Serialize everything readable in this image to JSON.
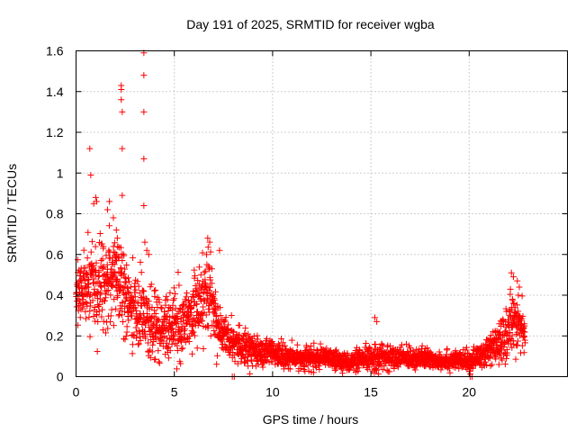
{
  "chart_data": {
    "type": "scatter",
    "title": "Day 191 of 2025, SRMTID for receiver wgba",
    "xlabel": "GPS time / hours",
    "ylabel": "SRMTID / TECUs",
    "xlim": [
      0,
      25
    ],
    "ylim": [
      0,
      1.6
    ],
    "x_ticks": [
      0,
      5,
      10,
      15,
      20
    ],
    "x_tick_labels": [
      "0",
      "5",
      "10",
      "15",
      "20"
    ],
    "y_ticks": [
      0,
      0.2,
      0.4,
      0.6,
      0.8,
      1,
      1.2,
      1.4,
      1.6
    ],
    "y_tick_labels": [
      "0",
      "0.2",
      "0.4",
      "0.6",
      "0.8",
      "1",
      "1.2",
      "1.4",
      "1.6"
    ],
    "grid": true,
    "marker": "+",
    "color": "#ff0000",
    "series": [
      {
        "name": "SRMTID",
        "profile": [
          [
            0.0,
            0.4,
            0.12
          ],
          [
            0.5,
            0.45,
            0.13
          ],
          [
            1.0,
            0.42,
            0.14
          ],
          [
            1.5,
            0.46,
            0.14
          ],
          [
            2.0,
            0.55,
            0.14
          ],
          [
            2.5,
            0.4,
            0.13
          ],
          [
            3.0,
            0.32,
            0.12
          ],
          [
            3.5,
            0.28,
            0.11
          ],
          [
            4.0,
            0.25,
            0.1
          ],
          [
            4.5,
            0.24,
            0.1
          ],
          [
            5.0,
            0.26,
            0.1
          ],
          [
            5.5,
            0.27,
            0.1
          ],
          [
            6.0,
            0.33,
            0.11
          ],
          [
            6.5,
            0.38,
            0.12
          ],
          [
            6.8,
            0.42,
            0.12
          ],
          [
            7.2,
            0.25,
            0.08
          ],
          [
            7.6,
            0.2,
            0.07
          ],
          [
            8.0,
            0.17,
            0.06
          ],
          [
            8.5,
            0.16,
            0.06
          ],
          [
            9.0,
            0.13,
            0.05
          ],
          [
            9.5,
            0.12,
            0.05
          ],
          [
            10.0,
            0.11,
            0.04
          ],
          [
            11.0,
            0.09,
            0.035
          ],
          [
            12.0,
            0.09,
            0.035
          ],
          [
            13.0,
            0.085,
            0.03
          ],
          [
            14.0,
            0.07,
            0.03
          ],
          [
            15.0,
            0.09,
            0.04
          ],
          [
            15.5,
            0.1,
            0.045
          ],
          [
            16.0,
            0.09,
            0.035
          ],
          [
            17.0,
            0.095,
            0.035
          ],
          [
            18.0,
            0.085,
            0.03
          ],
          [
            19.0,
            0.08,
            0.03
          ],
          [
            20.0,
            0.075,
            0.03
          ],
          [
            20.5,
            0.1,
            0.04
          ],
          [
            21.0,
            0.12,
            0.05
          ],
          [
            21.5,
            0.16,
            0.06
          ],
          [
            22.0,
            0.22,
            0.08
          ],
          [
            22.3,
            0.3,
            0.1
          ],
          [
            22.7,
            0.22,
            0.07
          ],
          [
            22.9,
            0.18,
            0.05
          ]
        ],
        "highlights": [
          [
            0.7,
            1.12
          ],
          [
            0.75,
            0.99
          ],
          [
            0.9,
            0.85
          ],
          [
            1.0,
            0.88
          ],
          [
            1.05,
            0.86
          ],
          [
            1.6,
            0.82
          ],
          [
            1.7,
            0.86
          ],
          [
            1.9,
            0.78
          ],
          [
            2.05,
            0.72
          ],
          [
            2.1,
            0.68
          ],
          [
            2.3,
            1.43
          ],
          [
            2.3,
            1.41
          ],
          [
            2.3,
            1.36
          ],
          [
            2.35,
            1.3
          ],
          [
            2.35,
            1.12
          ],
          [
            2.35,
            0.89
          ],
          [
            3.45,
            1.59
          ],
          [
            3.45,
            1.48
          ],
          [
            3.45,
            1.3
          ],
          [
            3.45,
            1.07
          ],
          [
            3.45,
            0.84
          ],
          [
            3.5,
            0.66
          ],
          [
            3.6,
            0.62
          ],
          [
            3.7,
            0.6
          ],
          [
            6.7,
            0.68
          ],
          [
            6.8,
            0.66
          ],
          [
            7.3,
            0.62
          ],
          [
            7.95,
            0.0
          ],
          [
            8.05,
            0.0
          ],
          [
            15.2,
            0.29
          ],
          [
            15.3,
            0.27
          ],
          [
            20.05,
            0.0
          ],
          [
            20.15,
            0.0
          ],
          [
            22.15,
            0.51
          ],
          [
            22.25,
            0.49
          ],
          [
            22.45,
            0.47
          ],
          [
            22.55,
            0.44
          ],
          [
            22.5,
            0.4
          ],
          [
            22.2,
            0.38
          ]
        ],
        "dense_x_start": 0.0,
        "dense_x_end": 22.85,
        "dense_count": 2600
      }
    ]
  }
}
